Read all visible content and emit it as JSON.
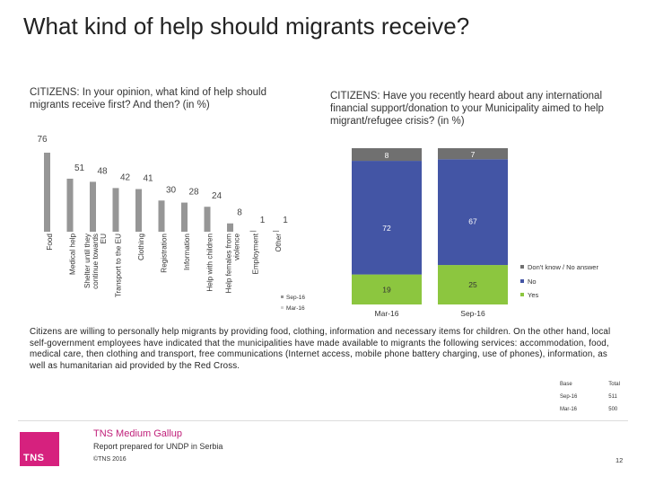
{
  "page": {
    "title": "What kind of help should migrants receive?",
    "left_chart_title": "CITIZENS: In your opinion, what kind of help should migrants receive first? And then? (in %)",
    "right_chart_title": "CITIZENS: Have you recently heard about any international financial support/donation to your Municipality aimed to help migrant/refugee crisis? (in %)",
    "footnote": "Citizens are willing to personally help migrants by providing food, clothing, information and necessary items for children. On the other hand, local self-government employees have indicated that the municipalities have made available to migrants the following services: accommodation, food, medical care, then clothing and transport, free communications (Internet access, mobile phone battery charging, use of phones), information, as well as humanitarian aid provided by the Red Cross."
  },
  "base_table": {
    "header": [
      "Base",
      "Total"
    ],
    "rows": [
      [
        "Sep-16",
        "511"
      ],
      [
        "Mar-16",
        "500"
      ]
    ]
  },
  "footer": {
    "logo_text": "TNS",
    "company": "TNS Medium Gallup",
    "report": "Report prepared for UNDP in Serbia",
    "copyright": "©TNS 2016",
    "page_number": "12"
  },
  "colors": {
    "sep16": "#969696",
    "mar16": "#d2d2d2",
    "dont_know": "#707070",
    "no": "#4355a5",
    "yes": "#8cc63f"
  },
  "chart_data": [
    {
      "type": "bar",
      "orientation": "vertical",
      "categories": [
        "Food",
        "Medical help",
        "Shelter until they continue towards EU",
        "Transport to the EU",
        "Clothing",
        "Registration",
        "Information",
        "Help with children",
        "Help females from violence",
        "Employment",
        "Other"
      ],
      "series": [
        {
          "name": "Sep-16",
          "values": [
            76,
            51,
            48,
            42,
            41,
            30,
            28,
            24,
            8,
            1,
            1
          ]
        },
        {
          "name": "Mar-16",
          "values": [
            null,
            null,
            null,
            null,
            null,
            null,
            null,
            null,
            null,
            null,
            null
          ]
        }
      ],
      "data_labels": [
        "76",
        "51",
        "48",
        "42",
        "41",
        "30",
        "28",
        "24",
        "8",
        "1",
        "1"
      ],
      "legend": [
        "Sep-16",
        "Mar-16"
      ],
      "ylim": [
        0,
        100
      ],
      "grid": false
    },
    {
      "type": "bar",
      "orientation": "vertical",
      "stacked": true,
      "categories": [
        "Mar-16",
        "Sep-16"
      ],
      "series": [
        {
          "name": "Yes",
          "values": [
            19,
            25
          ]
        },
        {
          "name": "No",
          "values": [
            72,
            67
          ]
        },
        {
          "name": "Don't know / No answer",
          "values": [
            8,
            7
          ]
        }
      ],
      "legend": [
        "Don't know / No answer",
        "No",
        "Yes"
      ],
      "ylim": [
        0,
        100
      ]
    }
  ]
}
